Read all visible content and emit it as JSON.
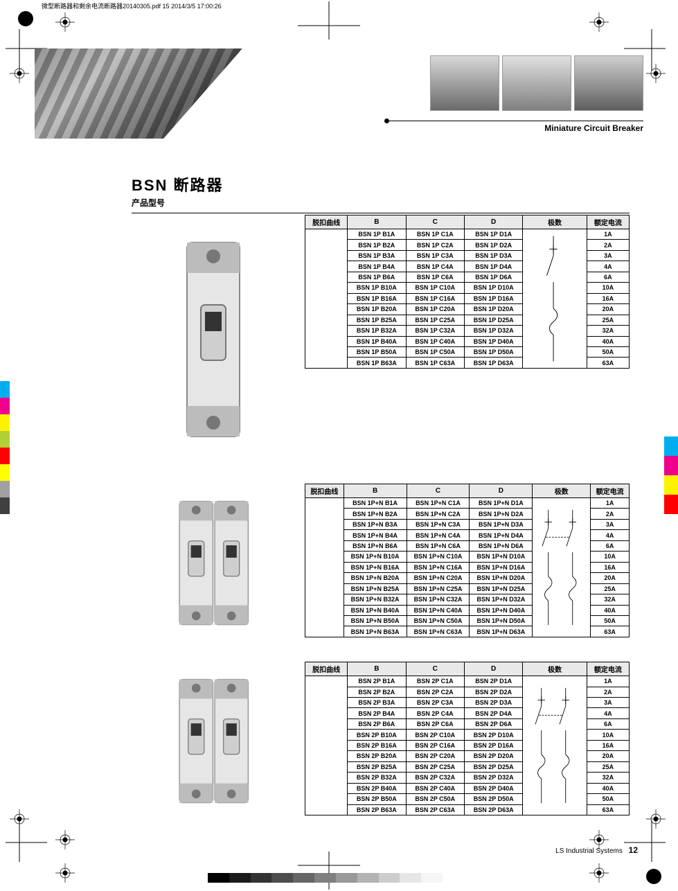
{
  "printMeta": "微型断路器和剩余电流断路器20140305.pdf  15  2014/3/5  17:00:26",
  "hero": {
    "label": "Miniature Circuit Breaker"
  },
  "title": {
    "main": "BSN 断路器",
    "sub": "产品型号"
  },
  "footer": {
    "brand": "LS Industrial Systems",
    "page": "12"
  },
  "tableHeaders": {
    "col0": "脱扣曲线",
    "colB": "B",
    "colC": "C",
    "colD": "D",
    "colPoles": "极数",
    "colRated": "额定电流"
  },
  "ratings": [
    "1A",
    "2A",
    "3A",
    "4A",
    "6A",
    "10A",
    "16A",
    "20A",
    "25A",
    "32A",
    "40A",
    "50A",
    "63A"
  ],
  "ratingSuffix": [
    "1A",
    "2A",
    "3A",
    "4A",
    "6A",
    "10A",
    "16A",
    "20A",
    "25A",
    "32A",
    "40A",
    "50A",
    "63A"
  ],
  "groups": [
    {
      "prefixB": "BSN 1P B",
      "prefixC": "BSN 1P C",
      "prefixD": "BSN 1P D",
      "poles": 1
    },
    {
      "prefixB": "BSN 1P+N B",
      "prefixC": "BSN 1P+N C",
      "prefixD": "BSN 1P+N D",
      "poles": 2
    },
    {
      "prefixB": "BSN 2P B",
      "prefixC": "BSN 2P C",
      "prefixD": "BSN 2P D",
      "poles": 2
    }
  ],
  "colorBarLeft": [
    "#00aeef",
    "#ec008c",
    "#fff200",
    "#b0d136",
    "#ff0000",
    "#ffff00",
    "#a0a0a0",
    "#404040"
  ],
  "colorBarRight": [
    "#00aeef",
    "#ec008c",
    "#fff200",
    "#ff0000"
  ],
  "footerGradient": [
    "#000",
    "#1a1a1a",
    "#333",
    "#4d4d4d",
    "#666",
    "#808080",
    "#999",
    "#b3b3b3",
    "#ccc",
    "#e6e6e6",
    "#f5f5f5",
    "#fff"
  ]
}
